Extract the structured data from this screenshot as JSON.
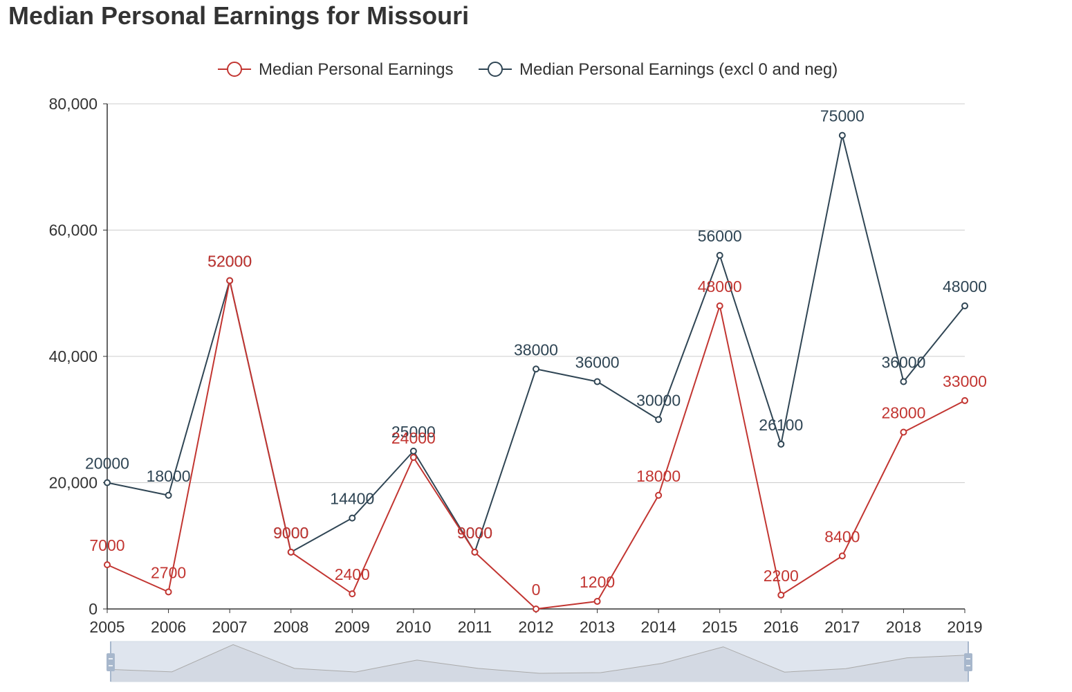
{
  "page": {
    "title": "Median Personal Earnings for Missouri"
  },
  "colors": {
    "series1": "#c23531",
    "series2": "#2f4554",
    "axis": "#333333",
    "grid": "#cccccc",
    "text": "#333333",
    "zoom_fill": "#dfe5ee",
    "zoom_border": "#d2dbe6",
    "zoom_handle": "#a7b7cc",
    "zoom_shadow": "#aaaaaa"
  },
  "chart_data": {
    "type": "line",
    "title": "Median Personal Earnings for Missouri",
    "xlabel": "",
    "ylabel": "",
    "categories": [
      "2005",
      "2006",
      "2007",
      "2008",
      "2009",
      "2010",
      "2011",
      "2012",
      "2013",
      "2014",
      "2015",
      "2016",
      "2017",
      "2018",
      "2019"
    ],
    "ylim": [
      0,
      80000
    ],
    "yticks": [
      0,
      20000,
      40000,
      60000,
      80000
    ],
    "ytick_labels": [
      "0",
      "20,000",
      "40,000",
      "60,000",
      "80,000"
    ],
    "grid": true,
    "legend_position": "top-center",
    "series": [
      {
        "name": "Median Personal Earnings",
        "values": [
          7000,
          2700,
          52000,
          9000,
          2400,
          24000,
          9000,
          0,
          1200,
          18000,
          48000,
          2200,
          8400,
          28000,
          33000
        ]
      },
      {
        "name": "Median Personal Earnings (excl 0 and neg)",
        "values": [
          20000,
          18000,
          52000,
          9000,
          14400,
          25000,
          9000,
          38000,
          36000,
          30000,
          56000,
          26100,
          75000,
          36000,
          48000
        ]
      }
    ],
    "data_zoom": {
      "range": [
        0,
        100
      ],
      "visible": true
    }
  }
}
